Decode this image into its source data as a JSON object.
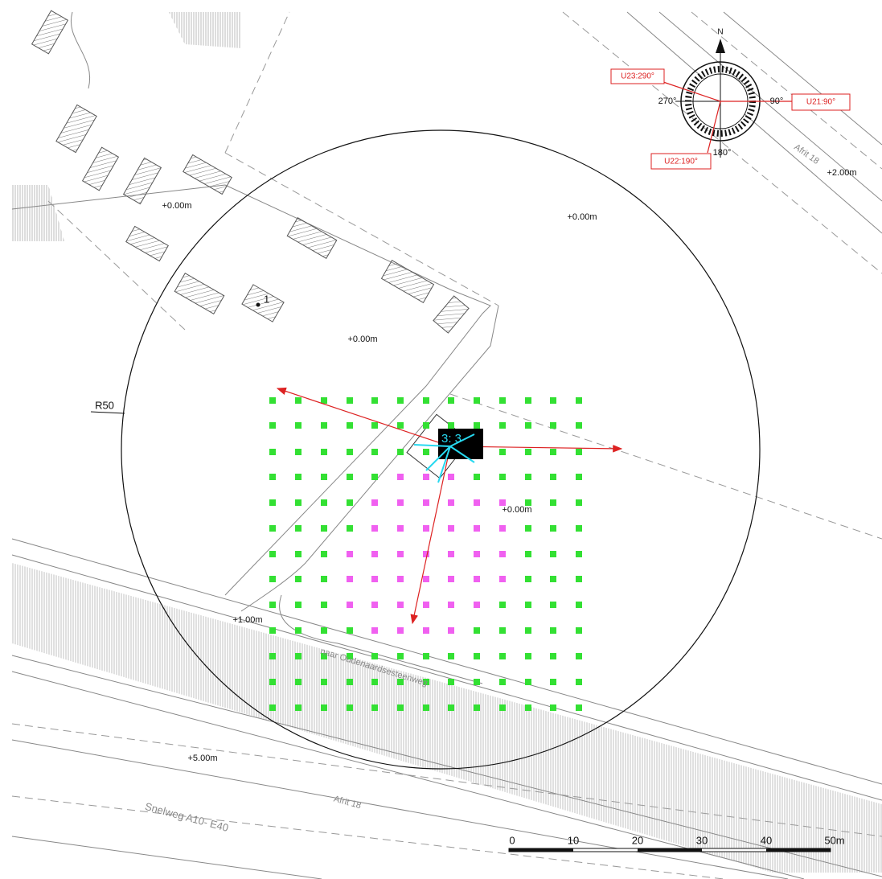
{
  "labels": {
    "elevations": [
      "+0.00m",
      "+0.00m",
      "+0.00m",
      "+0.00m",
      "+1.00m",
      "+5.00m",
      "+2.00m"
    ],
    "radius": "R50",
    "point": "1",
    "roads": [
      "Afrit 18",
      "Afrit 18",
      "Snelweg A10- E40",
      "naar Oudenaardsesteenweg"
    ],
    "compass": {
      "north": "N",
      "west": "270°",
      "east": "90°",
      "south": "180°"
    },
    "orientations": [
      "U23:290°",
      "U21:90°",
      "U22:190°"
    ],
    "scale": [
      "0",
      "10",
      "20",
      "30",
      "40",
      "50m"
    ],
    "marker": "3: 3"
  }
}
